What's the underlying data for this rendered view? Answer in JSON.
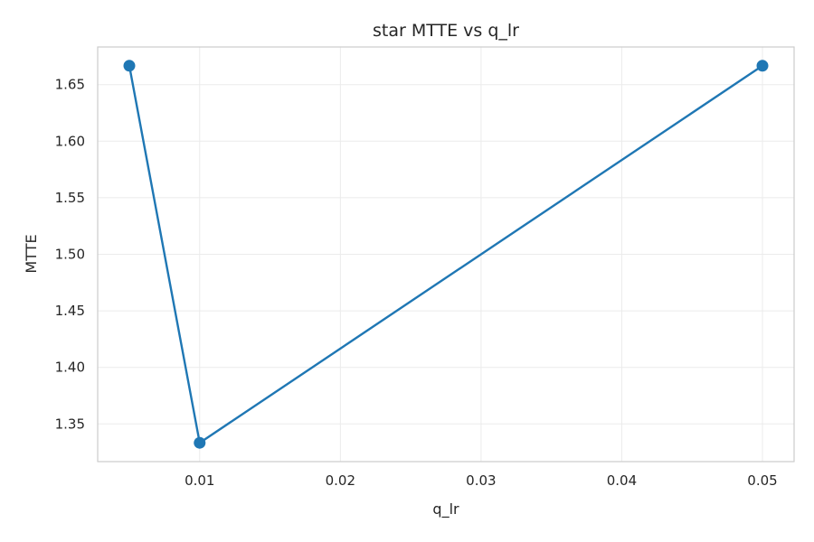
{
  "chart_data": {
    "type": "line",
    "title": "star MTTE vs q_lr",
    "xlabel": "q_lr",
    "ylabel": "MTTE",
    "x": [
      0.005,
      0.01,
      0.05
    ],
    "series": [
      {
        "values": [
          1.6667,
          1.3333,
          1.6667
        ]
      }
    ],
    "xlim": [
      0.00275,
      0.05225
    ],
    "ylim": [
      1.3167,
      1.6833
    ],
    "xticks": [
      0.01,
      0.02,
      0.03,
      0.04,
      0.05
    ],
    "xtick_labels": [
      "0.01",
      "0.02",
      "0.03",
      "0.04",
      "0.05"
    ],
    "yticks": [
      1.35,
      1.4,
      1.45,
      1.5,
      1.55,
      1.6,
      1.65
    ],
    "ytick_labels": [
      "1.35",
      "1.40",
      "1.45",
      "1.50",
      "1.55",
      "1.60",
      "1.65"
    ],
    "grid": true,
    "line_color": "#1f77b4"
  }
}
